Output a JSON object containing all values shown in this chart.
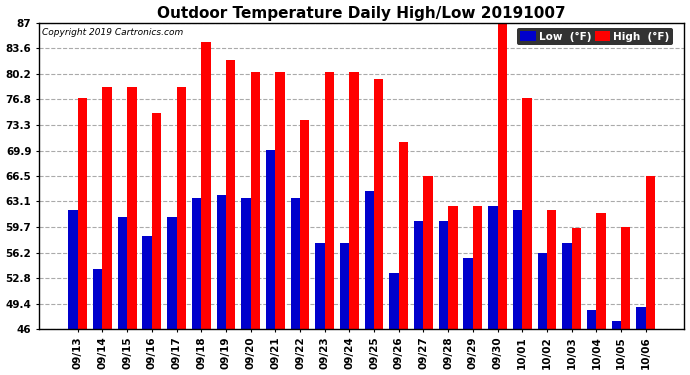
{
  "title": "Outdoor Temperature Daily High/Low 20191007",
  "copyright": "Copyright 2019 Cartronics.com",
  "categories": [
    "09/13",
    "09/14",
    "09/15",
    "09/16",
    "09/17",
    "09/18",
    "09/19",
    "09/20",
    "09/21",
    "09/22",
    "09/23",
    "09/24",
    "09/25",
    "09/26",
    "09/27",
    "09/28",
    "09/29",
    "09/30",
    "10/01",
    "10/02",
    "10/03",
    "10/04",
    "10/05",
    "10/06"
  ],
  "high": [
    77.0,
    78.5,
    78.5,
    75.0,
    78.5,
    84.5,
    82.0,
    80.5,
    80.5,
    74.0,
    80.5,
    80.5,
    79.5,
    71.0,
    66.5,
    62.5,
    62.5,
    87.0,
    77.0,
    62.0,
    59.5,
    61.5,
    59.7,
    66.5
  ],
  "low": [
    62.0,
    54.0,
    61.0,
    58.5,
    61.0,
    63.5,
    64.0,
    63.5,
    70.0,
    63.5,
    57.5,
    57.5,
    64.5,
    53.5,
    60.5,
    60.5,
    55.5,
    62.5,
    62.0,
    56.2,
    57.5,
    48.5,
    47.0,
    49.0
  ],
  "ylim_min": 46.0,
  "ylim_max": 87.0,
  "yticks": [
    46.0,
    49.4,
    52.8,
    56.2,
    59.7,
    63.1,
    66.5,
    69.9,
    73.3,
    76.8,
    80.2,
    83.6,
    87.0
  ],
  "bar_width": 0.38,
  "high_color": "#ff0000",
  "low_color": "#0000cc",
  "bg_color": "#ffffff",
  "grid_color": "#aaaaaa",
  "title_fontsize": 11,
  "tick_fontsize": 7.5,
  "legend_low_label": "Low  (°F)",
  "legend_high_label": "High  (°F)"
}
